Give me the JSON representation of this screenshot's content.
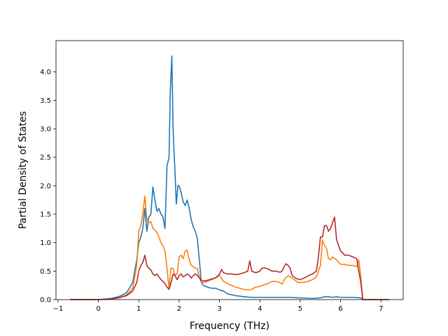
{
  "chart_data": {
    "type": "line",
    "title": "",
    "xlabel": "Frequency (THz)",
    "ylabel": "Partial Density of States",
    "xlim": [
      -1.05,
      7.55
    ],
    "ylim": [
      0.0,
      4.55
    ],
    "xticks": [
      -1,
      0,
      1,
      2,
      3,
      4,
      5,
      6,
      7
    ],
    "yticks": [
      0.0,
      0.5,
      1.0,
      1.5,
      2.0,
      2.5,
      3.0,
      3.5,
      4.0
    ],
    "xtick_labels": [
      "−1",
      "0",
      "1",
      "2",
      "3",
      "4",
      "5",
      "6",
      "7"
    ],
    "ytick_labels": [
      "0.0",
      "0.5",
      "1.0",
      "1.5",
      "2.0",
      "2.5",
      "3.0",
      "3.5",
      "4.0"
    ],
    "grid": false,
    "legend": "none",
    "series": [
      {
        "color": "#1f77b4",
        "points": [
          [
            -0.7,
            0.0
          ],
          [
            0.0,
            0.0
          ],
          [
            0.3,
            0.02
          ],
          [
            0.5,
            0.05
          ],
          [
            0.7,
            0.12
          ],
          [
            0.85,
            0.3
          ],
          [
            0.95,
            0.7
          ],
          [
            1.0,
            1.0
          ],
          [
            1.05,
            1.1
          ],
          [
            1.1,
            1.25
          ],
          [
            1.15,
            1.6
          ],
          [
            1.2,
            1.2
          ],
          [
            1.25,
            1.45
          ],
          [
            1.3,
            1.5
          ],
          [
            1.35,
            1.98
          ],
          [
            1.4,
            1.75
          ],
          [
            1.45,
            1.55
          ],
          [
            1.5,
            1.6
          ],
          [
            1.55,
            1.5
          ],
          [
            1.6,
            1.45
          ],
          [
            1.65,
            1.25
          ],
          [
            1.7,
            2.35
          ],
          [
            1.75,
            2.5
          ],
          [
            1.78,
            3.65
          ],
          [
            1.82,
            4.28
          ],
          [
            1.85,
            3.0
          ],
          [
            1.9,
            2.2
          ],
          [
            1.93,
            1.68
          ],
          [
            1.97,
            2.0
          ],
          [
            2.0,
            2.0
          ],
          [
            2.05,
            1.88
          ],
          [
            2.1,
            1.72
          ],
          [
            2.15,
            1.65
          ],
          [
            2.2,
            1.75
          ],
          [
            2.25,
            1.6
          ],
          [
            2.3,
            1.4
          ],
          [
            2.35,
            1.28
          ],
          [
            2.4,
            1.2
          ],
          [
            2.45,
            1.08
          ],
          [
            2.5,
            0.7
          ],
          [
            2.55,
            0.3
          ],
          [
            2.6,
            0.25
          ],
          [
            2.7,
            0.22
          ],
          [
            2.8,
            0.2
          ],
          [
            2.9,
            0.2
          ],
          [
            3.0,
            0.17
          ],
          [
            3.1,
            0.15
          ],
          [
            3.2,
            0.1
          ],
          [
            3.4,
            0.07
          ],
          [
            3.6,
            0.05
          ],
          [
            3.8,
            0.04
          ],
          [
            4.0,
            0.04
          ],
          [
            4.5,
            0.04
          ],
          [
            4.7,
            0.04
          ],
          [
            5.0,
            0.03
          ],
          [
            5.3,
            0.02
          ],
          [
            5.5,
            0.03
          ],
          [
            5.6,
            0.05
          ],
          [
            5.7,
            0.05
          ],
          [
            5.8,
            0.04
          ],
          [
            5.9,
            0.05
          ],
          [
            6.0,
            0.04
          ],
          [
            6.3,
            0.04
          ],
          [
            6.5,
            0.03
          ],
          [
            6.55,
            0.0
          ],
          [
            7.2,
            0.0
          ]
        ]
      },
      {
        "color": "#ff7f0e",
        "points": [
          [
            -0.7,
            0.0
          ],
          [
            0.0,
            0.0
          ],
          [
            0.3,
            0.01
          ],
          [
            0.5,
            0.03
          ],
          [
            0.7,
            0.08
          ],
          [
            0.85,
            0.2
          ],
          [
            0.95,
            0.6
          ],
          [
            1.0,
            1.2
          ],
          [
            1.05,
            1.3
          ],
          [
            1.1,
            1.5
          ],
          [
            1.15,
            1.82
          ],
          [
            1.2,
            1.4
          ],
          [
            1.25,
            1.35
          ],
          [
            1.3,
            1.37
          ],
          [
            1.35,
            1.25
          ],
          [
            1.4,
            1.22
          ],
          [
            1.45,
            1.18
          ],
          [
            1.5,
            1.1
          ],
          [
            1.55,
            1.0
          ],
          [
            1.6,
            0.95
          ],
          [
            1.65,
            0.85
          ],
          [
            1.7,
            0.55
          ],
          [
            1.75,
            0.2
          ],
          [
            1.8,
            0.55
          ],
          [
            1.85,
            0.55
          ],
          [
            1.9,
            0.43
          ],
          [
            1.95,
            0.45
          ],
          [
            2.0,
            0.75
          ],
          [
            2.05,
            0.78
          ],
          [
            2.1,
            0.72
          ],
          [
            2.15,
            0.85
          ],
          [
            2.2,
            0.87
          ],
          [
            2.25,
            0.7
          ],
          [
            2.3,
            0.6
          ],
          [
            2.35,
            0.58
          ],
          [
            2.4,
            0.55
          ],
          [
            2.45,
            0.55
          ],
          [
            2.5,
            0.4
          ],
          [
            2.55,
            0.3
          ],
          [
            2.6,
            0.3
          ],
          [
            2.7,
            0.32
          ],
          [
            2.8,
            0.35
          ],
          [
            2.9,
            0.38
          ],
          [
            2.95,
            0.42
          ],
          [
            3.0,
            0.43
          ],
          [
            3.1,
            0.32
          ],
          [
            3.2,
            0.28
          ],
          [
            3.3,
            0.25
          ],
          [
            3.4,
            0.22
          ],
          [
            3.5,
            0.2
          ],
          [
            3.6,
            0.18
          ],
          [
            3.7,
            0.17
          ],
          [
            3.8,
            0.18
          ],
          [
            3.9,
            0.22
          ],
          [
            4.0,
            0.23
          ],
          [
            4.1,
            0.26
          ],
          [
            4.2,
            0.28
          ],
          [
            4.3,
            0.32
          ],
          [
            4.4,
            0.32
          ],
          [
            4.5,
            0.3
          ],
          [
            4.55,
            0.27
          ],
          [
            4.6,
            0.35
          ],
          [
            4.7,
            0.42
          ],
          [
            4.75,
            0.4
          ],
          [
            4.85,
            0.35
          ],
          [
            4.95,
            0.3
          ],
          [
            5.05,
            0.3
          ],
          [
            5.2,
            0.32
          ],
          [
            5.3,
            0.35
          ],
          [
            5.4,
            0.4
          ],
          [
            5.5,
            0.6
          ],
          [
            5.55,
            1.05
          ],
          [
            5.6,
            0.95
          ],
          [
            5.65,
            0.9
          ],
          [
            5.7,
            0.72
          ],
          [
            5.75,
            0.7
          ],
          [
            5.8,
            0.75
          ],
          [
            5.85,
            0.72
          ],
          [
            5.9,
            0.7
          ],
          [
            5.95,
            0.65
          ],
          [
            6.0,
            0.62
          ],
          [
            6.1,
            0.62
          ],
          [
            6.2,
            0.6
          ],
          [
            6.3,
            0.6
          ],
          [
            6.4,
            0.58
          ],
          [
            6.45,
            0.7
          ],
          [
            6.5,
            0.4
          ],
          [
            6.55,
            0.0
          ],
          [
            7.2,
            0.0
          ]
        ]
      },
      {
        "color": "#b22d2d",
        "points": [
          [
            -0.7,
            0.0
          ],
          [
            0.0,
            0.0
          ],
          [
            0.3,
            0.01
          ],
          [
            0.5,
            0.03
          ],
          [
            0.7,
            0.07
          ],
          [
            0.85,
            0.15
          ],
          [
            0.95,
            0.3
          ],
          [
            1.0,
            0.5
          ],
          [
            1.05,
            0.6
          ],
          [
            1.1,
            0.65
          ],
          [
            1.15,
            0.78
          ],
          [
            1.2,
            0.6
          ],
          [
            1.25,
            0.55
          ],
          [
            1.3,
            0.52
          ],
          [
            1.35,
            0.45
          ],
          [
            1.4,
            0.42
          ],
          [
            1.45,
            0.45
          ],
          [
            1.5,
            0.4
          ],
          [
            1.55,
            0.35
          ],
          [
            1.6,
            0.32
          ],
          [
            1.65,
            0.28
          ],
          [
            1.7,
            0.22
          ],
          [
            1.75,
            0.18
          ],
          [
            1.8,
            0.3
          ],
          [
            1.85,
            0.45
          ],
          [
            1.9,
            0.42
          ],
          [
            1.95,
            0.35
          ],
          [
            2.0,
            0.42
          ],
          [
            2.05,
            0.45
          ],
          [
            2.1,
            0.4
          ],
          [
            2.15,
            0.42
          ],
          [
            2.2,
            0.45
          ],
          [
            2.25,
            0.43
          ],
          [
            2.3,
            0.38
          ],
          [
            2.35,
            0.42
          ],
          [
            2.4,
            0.45
          ],
          [
            2.45,
            0.43
          ],
          [
            2.5,
            0.38
          ],
          [
            2.55,
            0.33
          ],
          [
            2.65,
            0.33
          ],
          [
            2.75,
            0.35
          ],
          [
            2.85,
            0.37
          ],
          [
            2.95,
            0.4
          ],
          [
            3.0,
            0.45
          ],
          [
            3.05,
            0.53
          ],
          [
            3.1,
            0.47
          ],
          [
            3.2,
            0.45
          ],
          [
            3.3,
            0.45
          ],
          [
            3.4,
            0.44
          ],
          [
            3.5,
            0.45
          ],
          [
            3.6,
            0.47
          ],
          [
            3.7,
            0.5
          ],
          [
            3.75,
            0.68
          ],
          [
            3.8,
            0.5
          ],
          [
            3.9,
            0.47
          ],
          [
            4.0,
            0.5
          ],
          [
            4.05,
            0.55
          ],
          [
            4.1,
            0.56
          ],
          [
            4.2,
            0.54
          ],
          [
            4.3,
            0.5
          ],
          [
            4.4,
            0.5
          ],
          [
            4.5,
            0.48
          ],
          [
            4.55,
            0.5
          ],
          [
            4.6,
            0.58
          ],
          [
            4.65,
            0.63
          ],
          [
            4.7,
            0.6
          ],
          [
            4.75,
            0.55
          ],
          [
            4.8,
            0.42
          ],
          [
            4.9,
            0.37
          ],
          [
            5.0,
            0.35
          ],
          [
            5.1,
            0.38
          ],
          [
            5.2,
            0.42
          ],
          [
            5.3,
            0.45
          ],
          [
            5.4,
            0.5
          ],
          [
            5.45,
            0.75
          ],
          [
            5.5,
            1.1
          ],
          [
            5.55,
            1.1
          ],
          [
            5.6,
            1.3
          ],
          [
            5.65,
            1.3
          ],
          [
            5.7,
            1.2
          ],
          [
            5.75,
            1.25
          ],
          [
            5.8,
            1.35
          ],
          [
            5.85,
            1.45
          ],
          [
            5.9,
            1.05
          ],
          [
            5.95,
            0.95
          ],
          [
            6.0,
            0.85
          ],
          [
            6.05,
            0.82
          ],
          [
            6.1,
            0.78
          ],
          [
            6.2,
            0.78
          ],
          [
            6.3,
            0.75
          ],
          [
            6.4,
            0.72
          ],
          [
            6.45,
            0.5
          ],
          [
            6.5,
            0.3
          ],
          [
            6.55,
            0.0
          ],
          [
            7.2,
            0.0
          ]
        ]
      }
    ]
  }
}
